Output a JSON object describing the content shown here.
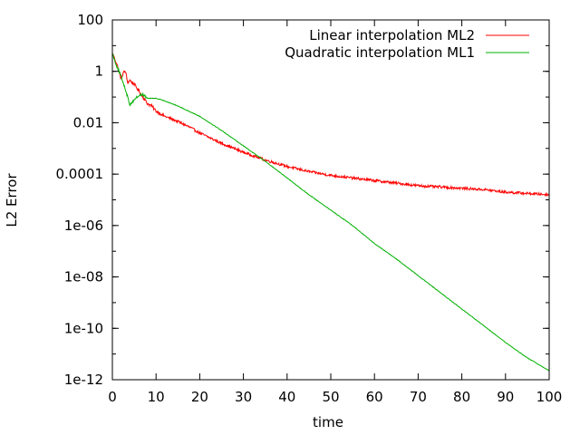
{
  "chart_data": {
    "type": "line",
    "title": "",
    "xlabel": "time",
    "ylabel": "L2 Error",
    "xlim": [
      0,
      100
    ],
    "ylim_log10": [
      -12,
      2
    ],
    "yscale": "log",
    "grid": false,
    "legend_position": "top-right",
    "x_ticks": [
      0,
      10,
      20,
      30,
      40,
      50,
      60,
      70,
      80,
      90,
      100
    ],
    "x_tick_labels": [
      "0",
      "10",
      "20",
      "30",
      "40",
      "50",
      "60",
      "70",
      "80",
      "90",
      "100"
    ],
    "y_ticks_log10": [
      2,
      0,
      -2,
      -4,
      -6,
      -8,
      -10,
      -12
    ],
    "y_tick_labels": [
      "100",
      "1",
      "0.01",
      "0.0001",
      "1e-06",
      "1e-08",
      "1e-10",
      "1e-12"
    ],
    "series": [
      {
        "name": "Linear interpolation ML2",
        "color": "#ff0000",
        "x": [
          0,
          1,
          2,
          2.5,
          3,
          3.5,
          4,
          5,
          6,
          7,
          8,
          9,
          10,
          12,
          15,
          18,
          20,
          25,
          30,
          35,
          40,
          45,
          50,
          55,
          60,
          65,
          70,
          75,
          80,
          85,
          90,
          95,
          100
        ],
        "log10y": [
          0.7,
          0.3,
          -0.3,
          -0.05,
          0.0,
          -0.45,
          -0.35,
          -0.5,
          -0.75,
          -1.0,
          -1.25,
          -1.35,
          -1.55,
          -1.75,
          -1.95,
          -2.2,
          -2.4,
          -2.8,
          -3.15,
          -3.45,
          -3.7,
          -3.9,
          -4.05,
          -4.15,
          -4.25,
          -4.35,
          -4.45,
          -4.5,
          -4.55,
          -4.6,
          -4.7,
          -4.75,
          -4.8
        ]
      },
      {
        "name": "Quadratic interpolation ML1",
        "color": "#00b000",
        "x": [
          0,
          1,
          2,
          3,
          4,
          5,
          6,
          7,
          8,
          10,
          12,
          15,
          20,
          25,
          30,
          35,
          40,
          45,
          50,
          55,
          60,
          65,
          70,
          75,
          80,
          85,
          90,
          95,
          100
        ],
        "log10y": [
          0.7,
          0.2,
          -0.2,
          -0.7,
          -1.3,
          -1.1,
          -0.95,
          -0.9,
          -1.05,
          -1.05,
          -1.15,
          -1.35,
          -1.75,
          -2.3,
          -2.9,
          -3.5,
          -4.15,
          -4.8,
          -5.4,
          -6.0,
          -6.7,
          -7.3,
          -7.95,
          -8.6,
          -9.25,
          -9.9,
          -10.55,
          -11.15,
          -11.65
        ]
      }
    ]
  }
}
